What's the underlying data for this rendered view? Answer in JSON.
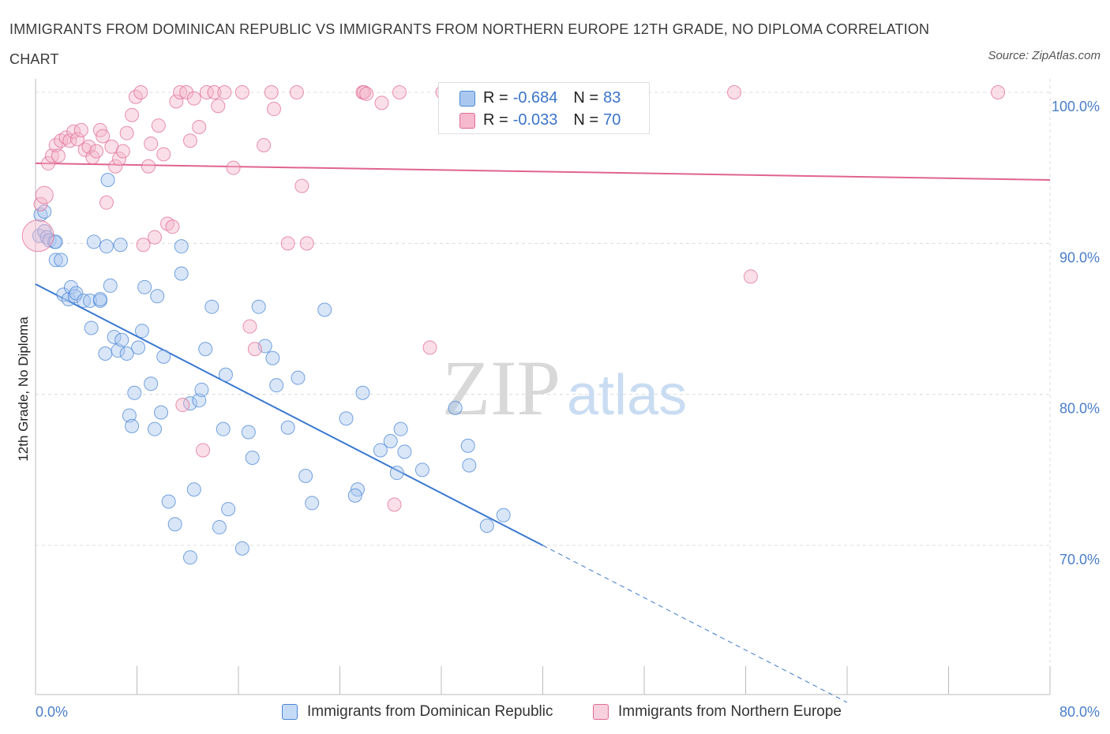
{
  "title": "IMMIGRANTS FROM DOMINICAN REPUBLIC VS IMMIGRANTS FROM NORTHERN EUROPE 12TH GRADE, NO DIPLOMA CORRELATION CHART",
  "source": "Source: ZipAtlas.com",
  "watermark": {
    "zip": "ZIP",
    "atlas": "atlas"
  },
  "colors": {
    "blue": "#4a86d4",
    "blue_fill": "#aac8ef",
    "pink": "#e06c94",
    "pink_fill": "#f5b8cc",
    "tick": "#4a7ec9"
  },
  "legend_top": [
    {
      "r_label": "R = ",
      "r_value": "-0.684",
      "n_label": "N = ",
      "n_value": "83"
    },
    {
      "r_label": "R = ",
      "r_value": "-0.033",
      "n_label": "N = ",
      "n_value": "70"
    }
  ],
  "legend_bottom": [
    "Immigrants from Dominican Republic",
    "Immigrants from Northern Europe"
  ],
  "chart_data": {
    "type": "scatter",
    "title": "IMMIGRANTS FROM DOMINICAN REPUBLIC VS IMMIGRANTS FROM NORTHERN EUROPE 12TH GRADE, NO DIPLOMA CORRELATION CHART",
    "xlabel": "",
    "ylabel": "12th Grade, No Diploma",
    "xlim": [
      0,
      80
    ],
    "ylim": [
      60,
      102
    ],
    "x_ticks_labels": [
      "0.0%",
      "80.0%"
    ],
    "y_ticks": [
      70,
      80,
      90,
      100
    ],
    "y_tick_labels": [
      "70.0%",
      "80.0%",
      "90.0%",
      "100.0%"
    ],
    "grid": true,
    "legend_placement": "bottom",
    "series": [
      {
        "name": "Immigrants from Dominican Republic",
        "color": "#4a86d4",
        "trend": {
          "x0": 0,
          "y0": 87.3,
          "x1": 40,
          "y1": 70.0,
          "dashed_to_x": 64,
          "dashed_to_y": 59.6
        },
        "points": [
          [
            0.3,
            90.5
          ],
          [
            0.4,
            91.9
          ],
          [
            0.7,
            90.8
          ],
          [
            0.9,
            90.4
          ],
          [
            1.1,
            90.2
          ],
          [
            1.5,
            90.1
          ],
          [
            1.6,
            88.9
          ],
          [
            2.0,
            88.9
          ],
          [
            2.2,
            86.6
          ],
          [
            2.6,
            86.3
          ],
          [
            2.8,
            87.1
          ],
          [
            3.1,
            86.5
          ],
          [
            3.2,
            86.7
          ],
          [
            3.8,
            86.2
          ],
          [
            4.3,
            86.2
          ],
          [
            4.4,
            84.4
          ],
          [
            4.6,
            90.1
          ],
          [
            5.1,
            86.2
          ],
          [
            5.1,
            86.3
          ],
          [
            5.5,
            82.7
          ],
          [
            5.6,
            89.8
          ],
          [
            5.9,
            87.2
          ],
          [
            6.2,
            83.8
          ],
          [
            6.5,
            82.9
          ],
          [
            6.7,
            89.9
          ],
          [
            6.8,
            83.6
          ],
          [
            7.2,
            82.7
          ],
          [
            7.4,
            78.6
          ],
          [
            7.6,
            77.9
          ],
          [
            7.8,
            80.1
          ],
          [
            8.1,
            83.1
          ],
          [
            8.4,
            84.2
          ],
          [
            8.6,
            87.1
          ],
          [
            9.1,
            80.7
          ],
          [
            9.4,
            77.7
          ],
          [
            9.6,
            86.5
          ],
          [
            9.9,
            78.8
          ],
          [
            10.1,
            82.5
          ],
          [
            10.5,
            72.9
          ],
          [
            11.0,
            71.4
          ],
          [
            11.5,
            89.8
          ],
          [
            11.5,
            88.0
          ],
          [
            12.2,
            69.2
          ],
          [
            12.2,
            79.4
          ],
          [
            12.5,
            73.7
          ],
          [
            12.9,
            79.6
          ],
          [
            13.1,
            80.3
          ],
          [
            13.4,
            83.0
          ],
          [
            13.9,
            85.8
          ],
          [
            14.5,
            71.2
          ],
          [
            14.8,
            77.7
          ],
          [
            15.0,
            81.3
          ],
          [
            15.2,
            72.4
          ],
          [
            16.3,
            69.8
          ],
          [
            16.8,
            77.5
          ],
          [
            17.1,
            75.8
          ],
          [
            17.6,
            85.8
          ],
          [
            18.1,
            83.2
          ],
          [
            18.7,
            82.4
          ],
          [
            19.0,
            80.6
          ],
          [
            19.9,
            77.8
          ],
          [
            20.7,
            81.1
          ],
          [
            21.3,
            74.6
          ],
          [
            21.8,
            72.8
          ],
          [
            22.8,
            85.6
          ],
          [
            24.5,
            78.4
          ],
          [
            25.4,
            73.7
          ],
          [
            25.2,
            73.3
          ],
          [
            25.8,
            80.1
          ],
          [
            27.2,
            76.3
          ],
          [
            28.0,
            76.9
          ],
          [
            28.5,
            74.8
          ],
          [
            28.8,
            77.7
          ],
          [
            29.1,
            76.2
          ],
          [
            30.5,
            75.0
          ],
          [
            33.1,
            79.1
          ],
          [
            34.1,
            76.6
          ],
          [
            34.2,
            75.3
          ],
          [
            35.6,
            71.3
          ],
          [
            36.9,
            72.0
          ],
          [
            5.7,
            94.2
          ],
          [
            0.7,
            92.1
          ],
          [
            1.6,
            90.1
          ]
        ]
      },
      {
        "name": "Immigrants from Northern Europe",
        "color": "#e06c94",
        "trend": {
          "x0": 0,
          "y0": 95.3,
          "x1": 80,
          "y1": 94.2
        },
        "points": [
          [
            0.2,
            90.5
          ],
          [
            0.4,
            92.6
          ],
          [
            0.7,
            93.2
          ],
          [
            1.0,
            95.3
          ],
          [
            1.3,
            95.8
          ],
          [
            1.6,
            96.5
          ],
          [
            1.8,
            95.8
          ],
          [
            2.0,
            96.8
          ],
          [
            2.4,
            97.0
          ],
          [
            2.7,
            96.8
          ],
          [
            3.0,
            97.4
          ],
          [
            3.3,
            96.9
          ],
          [
            3.6,
            97.5
          ],
          [
            3.9,
            96.2
          ],
          [
            4.2,
            96.4
          ],
          [
            4.5,
            95.7
          ],
          [
            4.8,
            96.1
          ],
          [
            5.1,
            97.5
          ],
          [
            5.3,
            97.1
          ],
          [
            5.6,
            92.7
          ],
          [
            6.0,
            96.4
          ],
          [
            6.3,
            95.1
          ],
          [
            6.6,
            95.6
          ],
          [
            6.9,
            96.1
          ],
          [
            7.2,
            97.3
          ],
          [
            7.6,
            98.5
          ],
          [
            7.9,
            99.7
          ],
          [
            8.3,
            100.0
          ],
          [
            8.5,
            89.9
          ],
          [
            8.9,
            95.1
          ],
          [
            9.1,
            96.6
          ],
          [
            9.4,
            90.4
          ],
          [
            9.7,
            97.8
          ],
          [
            10.1,
            95.9
          ],
          [
            10.4,
            91.3
          ],
          [
            10.8,
            91.1
          ],
          [
            11.1,
            99.4
          ],
          [
            11.4,
            100.0
          ],
          [
            11.6,
            79.3
          ],
          [
            11.9,
            100.0
          ],
          [
            12.2,
            96.8
          ],
          [
            12.5,
            99.6
          ],
          [
            12.9,
            97.7
          ],
          [
            13.2,
            76.3
          ],
          [
            13.5,
            100.0
          ],
          [
            14.1,
            100.0
          ],
          [
            14.4,
            99.1
          ],
          [
            14.9,
            100.0
          ],
          [
            15.6,
            95.0
          ],
          [
            16.3,
            100.0
          ],
          [
            16.9,
            84.5
          ],
          [
            17.3,
            83.0
          ],
          [
            18.0,
            96.5
          ],
          [
            18.6,
            100.0
          ],
          [
            18.8,
            98.9
          ],
          [
            19.9,
            90.0
          ],
          [
            20.6,
            100.0
          ],
          [
            21.0,
            93.8
          ],
          [
            21.4,
            90.0
          ],
          [
            25.8,
            100.0
          ],
          [
            25.9,
            100.0
          ],
          [
            26.1,
            99.9
          ],
          [
            27.3,
            99.3
          ],
          [
            28.3,
            72.7
          ],
          [
            28.7,
            100.0
          ],
          [
            31.1,
            83.1
          ],
          [
            32.1,
            100.0
          ],
          [
            55.1,
            100.0
          ],
          [
            56.4,
            87.8
          ],
          [
            75.9,
            100.0
          ]
        ]
      }
    ]
  }
}
